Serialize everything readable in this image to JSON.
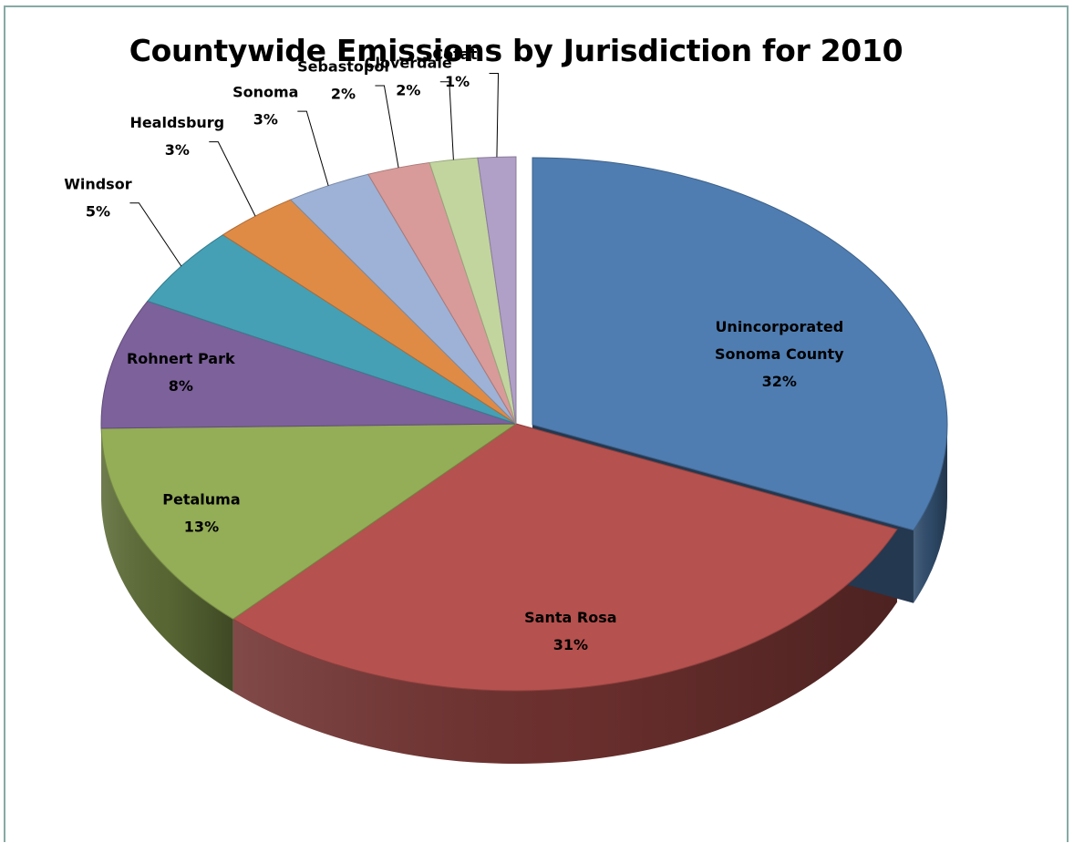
{
  "chart_data": {
    "type": "pie",
    "title": "Countywide Emissions by Jurisdiction for 2010",
    "slices": [
      {
        "lines": [
          "Unincorporated",
          "Sonoma County"
        ],
        "pct_label": "32%",
        "value": 32,
        "color": "#4f7db1",
        "exploded": true
      },
      {
        "lines": [
          "Santa Rosa"
        ],
        "pct_label": "31%",
        "value": 31,
        "color": "#b5514e"
      },
      {
        "lines": [
          "Petaluma"
        ],
        "pct_label": "13%",
        "value": 13,
        "color": "#94ad57"
      },
      {
        "lines": [
          "Rohnert Park"
        ],
        "pct_label": "8%",
        "value": 8,
        "color": "#7c619b"
      },
      {
        "lines": [
          "Windsor"
        ],
        "pct_label": "5%",
        "value": 5,
        "color": "#45a0b5"
      },
      {
        "lines": [
          "Healdsburg"
        ],
        "pct_label": "3%",
        "value": 3.4,
        "color": "#df8b46"
      },
      {
        "lines": [
          "Sonoma"
        ],
        "pct_label": "3%",
        "value": 3.4,
        "color": "#9db2d6"
      },
      {
        "lines": [
          "Sebastopol"
        ],
        "pct_label": "2%",
        "value": 2.5,
        "color": "#d89b9a"
      },
      {
        "lines": [
          "Cloverdale"
        ],
        "pct_label": "2%",
        "value": 1.9,
        "color": "#c3d59f"
      },
      {
        "lines": [
          "Cotati"
        ],
        "pct_label": "1%",
        "value": 1.5,
        "color": "#b09fc6"
      }
    ]
  }
}
